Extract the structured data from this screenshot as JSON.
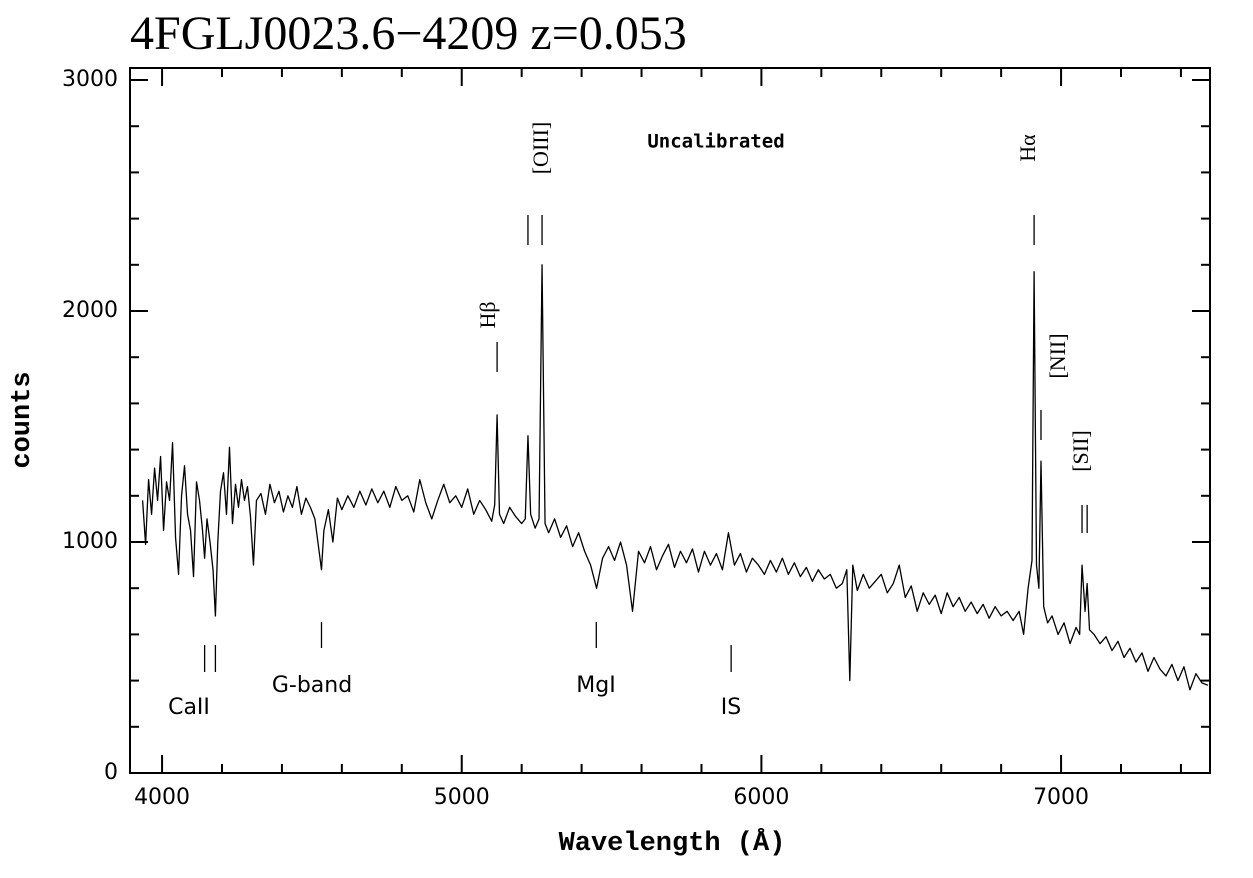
{
  "chart_data": {
    "type": "line",
    "title": "4FGLJ0023.6−4209 z=0.053",
    "x_label": "Wavelength (Å)",
    "y_label": "counts",
    "note": "Uncalibrated",
    "xlim": [
      3893,
      7497
    ],
    "ylim": [
      0,
      3052
    ],
    "xticks": [
      4000,
      5000,
      6000,
      7000
    ],
    "yticks": [
      0,
      1000,
      2000,
      3000
    ],
    "xminorticks": [
      4200,
      4400,
      4600,
      4800,
      5200,
      5400,
      5600,
      5800,
      6200,
      6400,
      6600,
      6800,
      7200,
      7400
    ],
    "yminorticks": [
      200,
      400,
      600,
      800,
      1200,
      1400,
      1600,
      1800,
      2200,
      2400,
      2600,
      2800
    ],
    "x": [
      3935,
      3945,
      3955,
      3965,
      3975,
      3985,
      3995,
      4005,
      4015,
      4025,
      4035,
      4045,
      4055,
      4065,
      4075,
      4085,
      4095,
      4105,
      4115,
      4125,
      4135,
      4142,
      4150,
      4160,
      4170,
      4178,
      4186,
      4195,
      4205,
      4215,
      4225,
      4235,
      4245,
      4255,
      4265,
      4275,
      4285,
      4295,
      4305,
      4315,
      4330,
      4345,
      4360,
      4375,
      4390,
      4405,
      4420,
      4435,
      4450,
      4465,
      4480,
      4495,
      4510,
      4525,
      4532,
      4540,
      4555,
      4570,
      4585,
      4600,
      4620,
      4640,
      4660,
      4680,
      4700,
      4720,
      4740,
      4760,
      4780,
      4800,
      4820,
      4840,
      4860,
      4880,
      4900,
      4920,
      4940,
      4960,
      4980,
      5000,
      5020,
      5040,
      5060,
      5080,
      5100,
      5110,
      5118,
      5126,
      5140,
      5160,
      5180,
      5200,
      5212,
      5221,
      5230,
      5245,
      5258,
      5268,
      5278,
      5290,
      5310,
      5330,
      5350,
      5370,
      5390,
      5410,
      5430,
      5450,
      5470,
      5490,
      5510,
      5530,
      5550,
      5570,
      5590,
      5610,
      5630,
      5650,
      5670,
      5690,
      5710,
      5730,
      5750,
      5770,
      5790,
      5810,
      5830,
      5850,
      5870,
      5890,
      5910,
      5930,
      5950,
      5970,
      5990,
      6010,
      6030,
      6050,
      6070,
      6090,
      6110,
      6130,
      6150,
      6170,
      6190,
      6210,
      6230,
      6250,
      6270,
      6285,
      6295,
      6305,
      6320,
      6340,
      6360,
      6380,
      6400,
      6420,
      6440,
      6460,
      6480,
      6500,
      6520,
      6540,
      6560,
      6580,
      6600,
      6620,
      6640,
      6660,
      6680,
      6700,
      6720,
      6740,
      6760,
      6780,
      6800,
      6820,
      6840,
      6860,
      6875,
      6890,
      6903,
      6910,
      6918,
      6926,
      6933,
      6942,
      6955,
      6970,
      6990,
      7010,
      7030,
      7050,
      7062,
      7070,
      7080,
      7087,
      7095,
      7110,
      7130,
      7150,
      7170,
      7190,
      7210,
      7230,
      7250,
      7270,
      7290,
      7310,
      7330,
      7350,
      7370,
      7390,
      7410,
      7430,
      7450,
      7470,
      7490
    ],
    "series": [
      {
        "color": "#000000",
        "values": [
          1180,
          990,
          1270,
          1120,
          1320,
          1180,
          1370,
          1050,
          1260,
          1180,
          1430,
          1020,
          860,
          1200,
          1330,
          1120,
          1050,
          850,
          1260,
          1180,
          1050,
          930,
          1100,
          1000,
          880,
          680,
          1000,
          1220,
          1300,
          1120,
          1410,
          1080,
          1250,
          1150,
          1270,
          1180,
          1240,
          1110,
          900,
          1180,
          1210,
          1120,
          1250,
          1170,
          1220,
          1130,
          1200,
          1150,
          1240,
          1120,
          1190,
          1150,
          1100,
          950,
          880,
          1050,
          1140,
          1000,
          1190,
          1140,
          1200,
          1150,
          1220,
          1160,
          1230,
          1170,
          1220,
          1150,
          1240,
          1180,
          1200,
          1130,
          1270,
          1170,
          1100,
          1180,
          1250,
          1170,
          1200,
          1150,
          1230,
          1120,
          1180,
          1140,
          1090,
          1160,
          1550,
          1120,
          1080,
          1150,
          1110,
          1080,
          1100,
          1460,
          1120,
          1060,
          1100,
          2200,
          1080,
          1040,
          1100,
          1020,
          1070,
          980,
          1040,
          960,
          900,
          800,
          930,
          980,
          920,
          1000,
          900,
          700,
          960,
          910,
          980,
          880,
          940,
          990,
          890,
          960,
          910,
          970,
          870,
          960,
          900,
          950,
          880,
          1040,
          900,
          950,
          870,
          930,
          900,
          860,
          920,
          870,
          930,
          860,
          910,
          850,
          890,
          830,
          880,
          840,
          860,
          800,
          820,
          880,
          400,
          900,
          790,
          860,
          800,
          830,
          860,
          780,
          820,
          900,
          760,
          810,
          700,
          780,
          730,
          770,
          690,
          780,
          720,
          760,
          700,
          740,
          690,
          730,
          670,
          720,
          680,
          700,
          660,
          700,
          600,
          800,
          920,
          2170,
          900,
          800,
          1350,
          720,
          650,
          680,
          600,
          650,
          560,
          630,
          600,
          900,
          700,
          820,
          620,
          600,
          560,
          590,
          530,
          570,
          500,
          540,
          480,
          520,
          440,
          500,
          450,
          420,
          470,
          400,
          460,
          360,
          430,
          390,
          380
        ]
      }
    ],
    "annotations": [
      {
        "text": "CaII",
        "x": [
          4142,
          4178
        ]
      },
      {
        "text": "G-band",
        "x": [
          4532
        ]
      },
      {
        "text": "MgI",
        "x": [
          5449
        ]
      },
      {
        "text": "IS",
        "x": [
          5899
        ]
      },
      {
        "text": "Hβ",
        "x": [
          5118
        ]
      },
      {
        "text": "[OIII]",
        "x": [
          5221,
          5268
        ]
      },
      {
        "text": "Hα",
        "x": [
          6910
        ]
      },
      {
        "text": "[NII]",
        "x": [
          6933
        ]
      },
      {
        "text": "[SII]",
        "x": [
          7070,
          7087
        ]
      }
    ]
  }
}
